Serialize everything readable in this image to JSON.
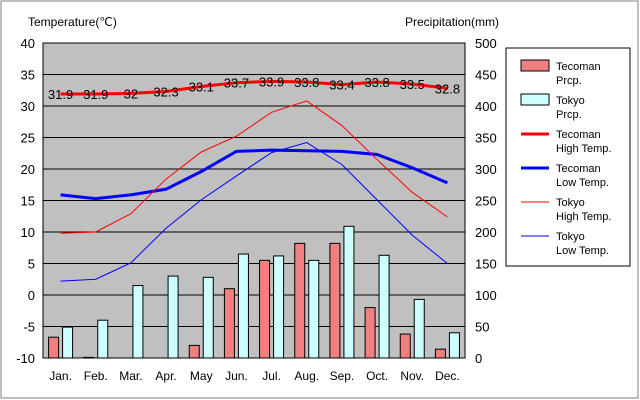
{
  "chart_data": {
    "type": "bar+line",
    "left_axis_title": "Temperature(℃)",
    "right_axis_title": "Precipitation(mm)",
    "temperature_range": [
      -10,
      40
    ],
    "temperature_ticks": [
      "40",
      "35",
      "30",
      "25",
      "20",
      "15",
      "10",
      "5",
      "0",
      "-5",
      "-10"
    ],
    "precipitation_range": [
      0,
      500
    ],
    "precipitation_ticks": [
      "500",
      "450",
      "400",
      "350",
      "300",
      "250",
      "200",
      "150",
      "100",
      "50",
      "0"
    ],
    "categories": [
      "Jan.",
      "Feb.",
      "Mar.",
      "Apr.",
      "May",
      "Jun.",
      "Jul.",
      "Aug.",
      "Sep.",
      "Oct.",
      "Nov.",
      "Dec."
    ],
    "grid": true,
    "legend_position": "right",
    "series": [
      {
        "name": "Tecoman\nPrcp.",
        "type": "bar",
        "axis": "precipitation",
        "color": "#f08080",
        "values": [
          33,
          1,
          0,
          0,
          20,
          110,
          155,
          182,
          182,
          80,
          38,
          14
        ]
      },
      {
        "name": "Tokyo\nPrcp.",
        "type": "bar",
        "axis": "precipitation",
        "color": "#ccffff",
        "values": [
          49,
          60,
          115,
          130,
          128,
          165,
          162,
          155,
          209,
          163,
          93,
          40
        ]
      },
      {
        "name": "Tecoman\nHigh Temp.",
        "type": "line",
        "axis": "temperature",
        "color": "#ff0000",
        "width": 3,
        "values": [
          31.9,
          31.9,
          32,
          32.3,
          33.1,
          33.7,
          33.9,
          33.8,
          33.4,
          33.8,
          33.5,
          32.8
        ],
        "labels": [
          "31.9",
          "31.9",
          "32",
          "32.3",
          "33.1",
          "33.7",
          "33.9",
          "33.8",
          "33.4",
          "33.8",
          "33.5",
          "32.8"
        ]
      },
      {
        "name": "Tecoman\nLow Temp.",
        "type": "line",
        "axis": "temperature",
        "color": "#0000ff",
        "width": 3,
        "values": [
          15.9,
          15.3,
          15.9,
          16.8,
          19.6,
          22.8,
          23.0,
          22.9,
          22.8,
          22.3,
          20.2,
          17.8
        ]
      },
      {
        "name": "Tokyo\nHigh Temp.",
        "type": "line",
        "axis": "temperature",
        "color": "#ff0000",
        "width": 1,
        "values": [
          9.8,
          10.0,
          12.9,
          18.4,
          22.7,
          25.2,
          29.0,
          30.8,
          26.9,
          21.5,
          16.3,
          12.4
        ]
      },
      {
        "name": "Tokyo\nLow Temp.",
        "type": "line",
        "axis": "temperature",
        "color": "#0000ff",
        "width": 1,
        "values": [
          2.2,
          2.5,
          5.1,
          10.6,
          15.1,
          18.9,
          22.6,
          24.2,
          20.7,
          15.1,
          9.5,
          5.0
        ]
      }
    ]
  }
}
